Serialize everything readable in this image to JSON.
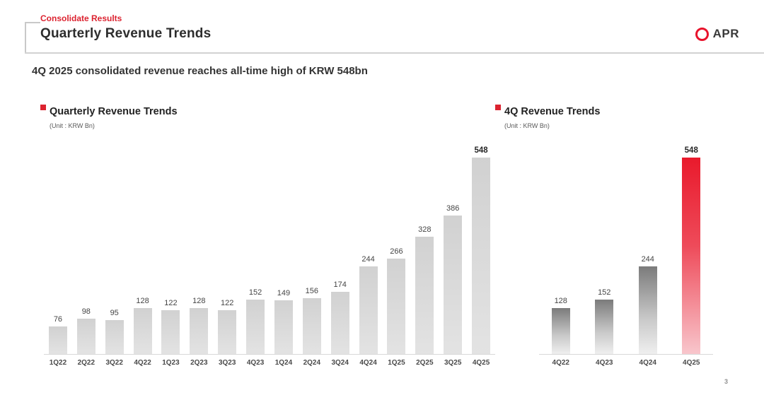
{
  "header": {
    "eyebrow": "Consolidate Results",
    "title": "Quarterly Revenue Trends",
    "logo_text": "APR"
  },
  "subtitle": "4Q 2025 consolidated revenue reaches all-time high of KRW 548bn",
  "page_number": "3",
  "colors": {
    "accent_red": "#dc2330",
    "logo_ring_red": "#e8132c",
    "flat_bar_gray": "#d9d9d9",
    "gradient_bar_gray_top": "#7b7b7b",
    "red_bar_top": "#e91a2c",
    "red_bar_bottom": "#f8c6cc"
  },
  "chart_data": [
    {
      "type": "bar",
      "title": "Quarterly Revenue Trends",
      "unit_label": "(Unit : KRW Bn)",
      "categories": [
        "1Q22",
        "2Q22",
        "3Q22",
        "4Q22",
        "1Q23",
        "2Q23",
        "3Q23",
        "4Q23",
        "1Q24",
        "2Q24",
        "3Q24",
        "4Q24",
        "1Q25",
        "2Q25",
        "3Q25",
        "4Q25"
      ],
      "values": [
        76,
        98,
        95,
        128,
        122,
        128,
        122,
        152,
        149,
        156,
        174,
        244,
        266,
        328,
        386,
        548
      ],
      "ylim": [
        0,
        560
      ],
      "grid": false,
      "legend": "none",
      "bar_style": "flat",
      "highlight": {
        "index": 15,
        "bold_label": true,
        "bar_color": "none"
      }
    },
    {
      "type": "bar",
      "title": "4Q Revenue Trends",
      "unit_label": "(Unit : KRW Bn)",
      "categories": [
        "4Q22",
        "4Q23",
        "4Q24",
        "4Q25"
      ],
      "values": [
        128,
        152,
        244,
        548
      ],
      "ylim": [
        0,
        560
      ],
      "grid": false,
      "legend": "none",
      "bar_style": "gradient",
      "highlight": {
        "index": 3,
        "bold_label": true,
        "bar_color": "red"
      }
    }
  ]
}
